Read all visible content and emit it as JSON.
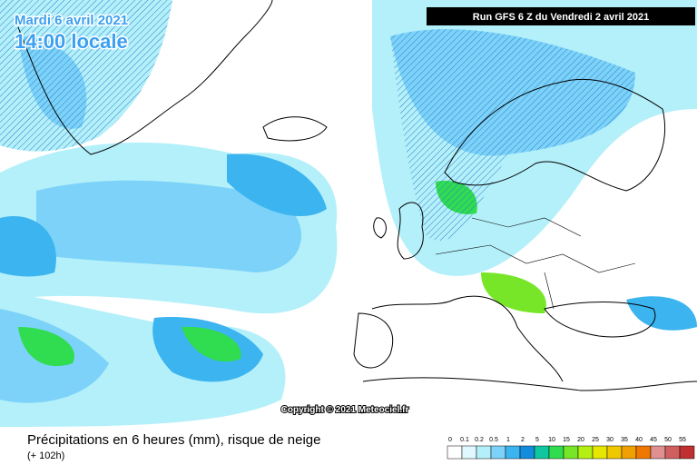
{
  "header": {
    "date": "Mardi 6 avril 2021",
    "time": "14:00 locale",
    "run": "Run GFS 6 Z du Vendredi 2 avril 2021"
  },
  "copyright": "Copyright © 2021 Meteociel.fr",
  "footer": {
    "title": "Précipitations en 6 heures (mm), risque de neige",
    "subtitle": "(+ 102h)"
  },
  "legend": {
    "values": [
      0,
      0.1,
      0.2,
      0.5,
      1,
      2,
      5,
      10,
      15,
      20,
      25,
      30,
      35,
      40,
      45,
      50,
      55
    ],
    "colors": [
      "#ffffff",
      "#e0f8ff",
      "#b4f0fa",
      "#7cd2f8",
      "#3cb4f0",
      "#148cdc",
      "#10c8a0",
      "#30dc50",
      "#78e628",
      "#b4f014",
      "#e6e600",
      "#f0c800",
      "#f0a000",
      "#f07800",
      "#e09090",
      "#d06060",
      "#c03030"
    ]
  }
}
